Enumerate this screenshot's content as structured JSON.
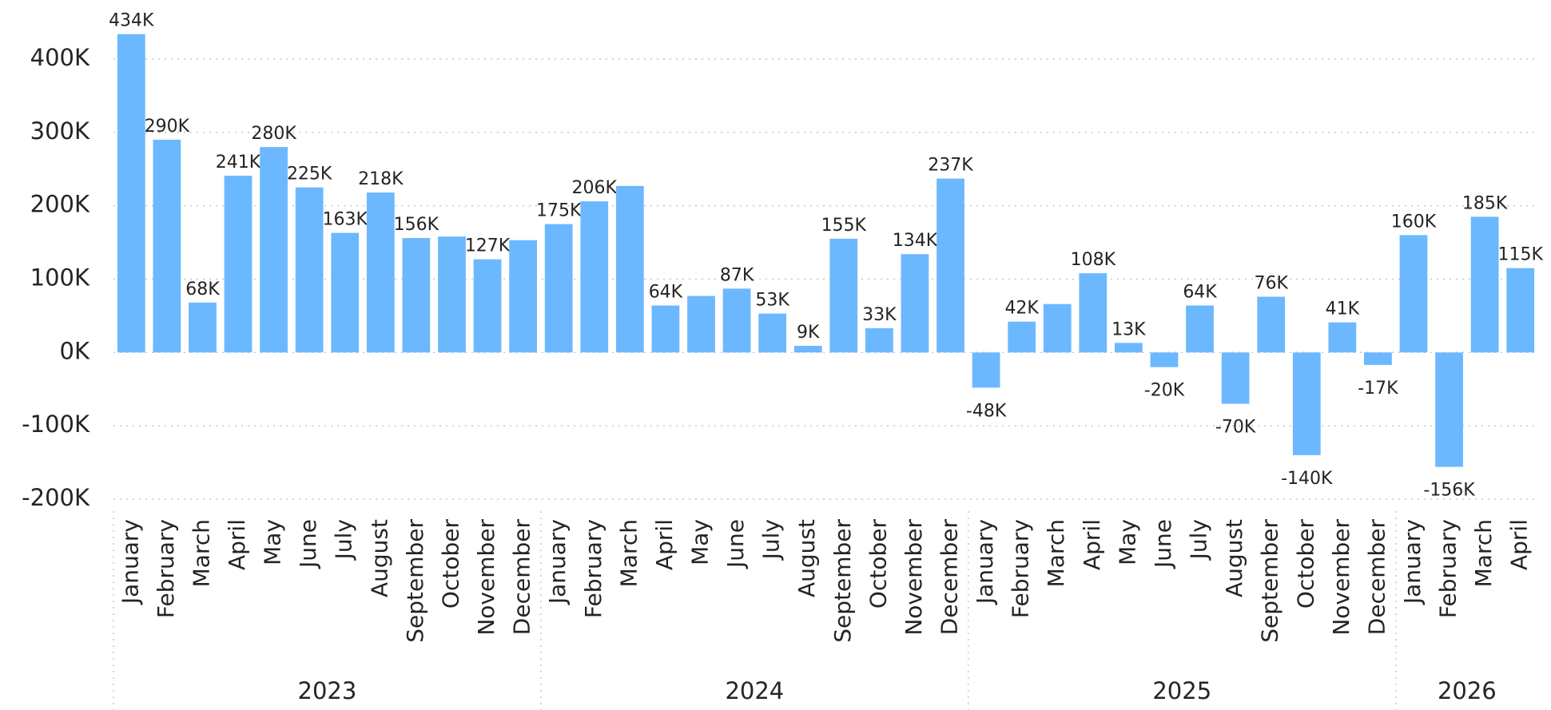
{
  "chart_data": {
    "type": "bar",
    "color": "#6cb8ff",
    "grid": true,
    "ylim": [
      -200000,
      450000
    ],
    "yticks": [
      {
        "value": -200000,
        "label": "-200K"
      },
      {
        "value": -100000,
        "label": "-100K"
      },
      {
        "value": 0,
        "label": "0K"
      },
      {
        "value": 100000,
        "label": "100K"
      },
      {
        "value": 200000,
        "label": "200K"
      },
      {
        "value": 300000,
        "label": "300K"
      },
      {
        "value": 400000,
        "label": "400K"
      }
    ],
    "groups": [
      {
        "name": "2023",
        "categories": [
          "January",
          "February",
          "March",
          "April",
          "May",
          "June",
          "July",
          "August",
          "September",
          "October",
          "November",
          "December"
        ],
        "values": [
          434000,
          290000,
          68000,
          241000,
          280000,
          225000,
          163000,
          218000,
          156000,
          158000,
          127000,
          153000
        ],
        "value_labels": [
          "434K",
          "290K",
          "68K",
          "241K",
          "280K",
          "225K",
          "163K",
          "218K",
          "156K",
          null,
          "127K",
          null
        ]
      },
      {
        "name": "2024",
        "categories": [
          "January",
          "February",
          "March",
          "April",
          "May",
          "June",
          "July",
          "August",
          "September",
          "October",
          "November",
          "December"
        ],
        "values": [
          175000,
          206000,
          227000,
          64000,
          77000,
          87000,
          53000,
          9000,
          155000,
          33000,
          134000,
          237000
        ],
        "value_labels": [
          "175K",
          "206K",
          null,
          "64K",
          null,
          "87K",
          "53K",
          "9K",
          "155K",
          "33K",
          "134K",
          "237K"
        ]
      },
      {
        "name": "2025",
        "categories": [
          "January",
          "February",
          "March",
          "April",
          "May",
          "June",
          "July",
          "August",
          "September",
          "October",
          "November",
          "December"
        ],
        "values": [
          -48000,
          42000,
          66000,
          108000,
          13000,
          -20000,
          64000,
          -70000,
          76000,
          -140000,
          41000,
          -17000
        ],
        "value_labels": [
          "-48K",
          "42K",
          null,
          "108K",
          "13K",
          "-20K",
          "64K",
          "-70K",
          "76K",
          "-140K",
          "41K",
          "-17K"
        ]
      },
      {
        "name": "2026",
        "categories": [
          "January",
          "February",
          "March",
          "April"
        ],
        "values": [
          160000,
          -156000,
          185000,
          115000
        ],
        "value_labels": [
          "160K",
          "-156K",
          "185K",
          "115K"
        ]
      }
    ]
  }
}
